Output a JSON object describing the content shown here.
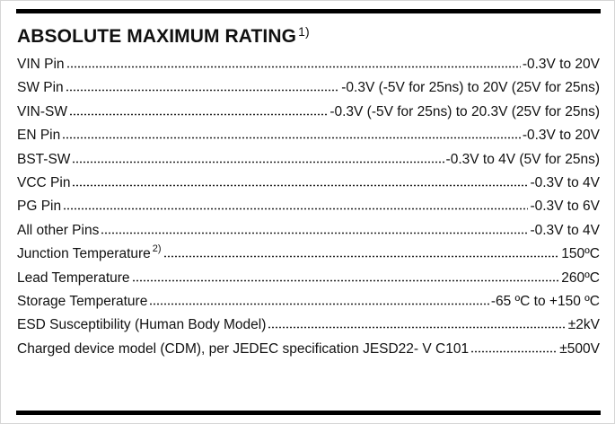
{
  "header": {
    "title": "ABSOLUTE MAXIMUM RATING",
    "note": "1)"
  },
  "rows": [
    {
      "label": "VIN Pin",
      "value": "-0.3V to 20V"
    },
    {
      "label": "SW Pin",
      "value": "-0.3V (-5V for 25ns) to 20V (25V for 25ns)"
    },
    {
      "label": "VIN-SW",
      "value": "-0.3V (-5V for 25ns) to 20.3V (25V for 25ns)"
    },
    {
      "label": "EN Pin",
      "value": "-0.3V to 20V"
    },
    {
      "label": "BST-SW",
      "value": "-0.3V to 4V (5V for 25ns)"
    },
    {
      "label": "VCC Pin",
      "value": "-0.3V to 4V"
    },
    {
      "label": "PG Pin",
      "value": "-0.3V to 6V"
    },
    {
      "label": "All other Pins",
      "value": "-0.3V to 4V"
    },
    {
      "label": "Junction Temperature",
      "note": "2)",
      "value": "150ºC"
    },
    {
      "label": "Lead Temperature",
      "value": "260ºC"
    },
    {
      "label": "Storage Temperature",
      "value": "-65 ºC to +150 ºC"
    },
    {
      "label": "ESD Susceptibility (Human Body Model)",
      "value": "±2kV"
    },
    {
      "label": "Charged device model (CDM), per JEDEC specification JESD22- V C101",
      "value": "±500V"
    }
  ]
}
